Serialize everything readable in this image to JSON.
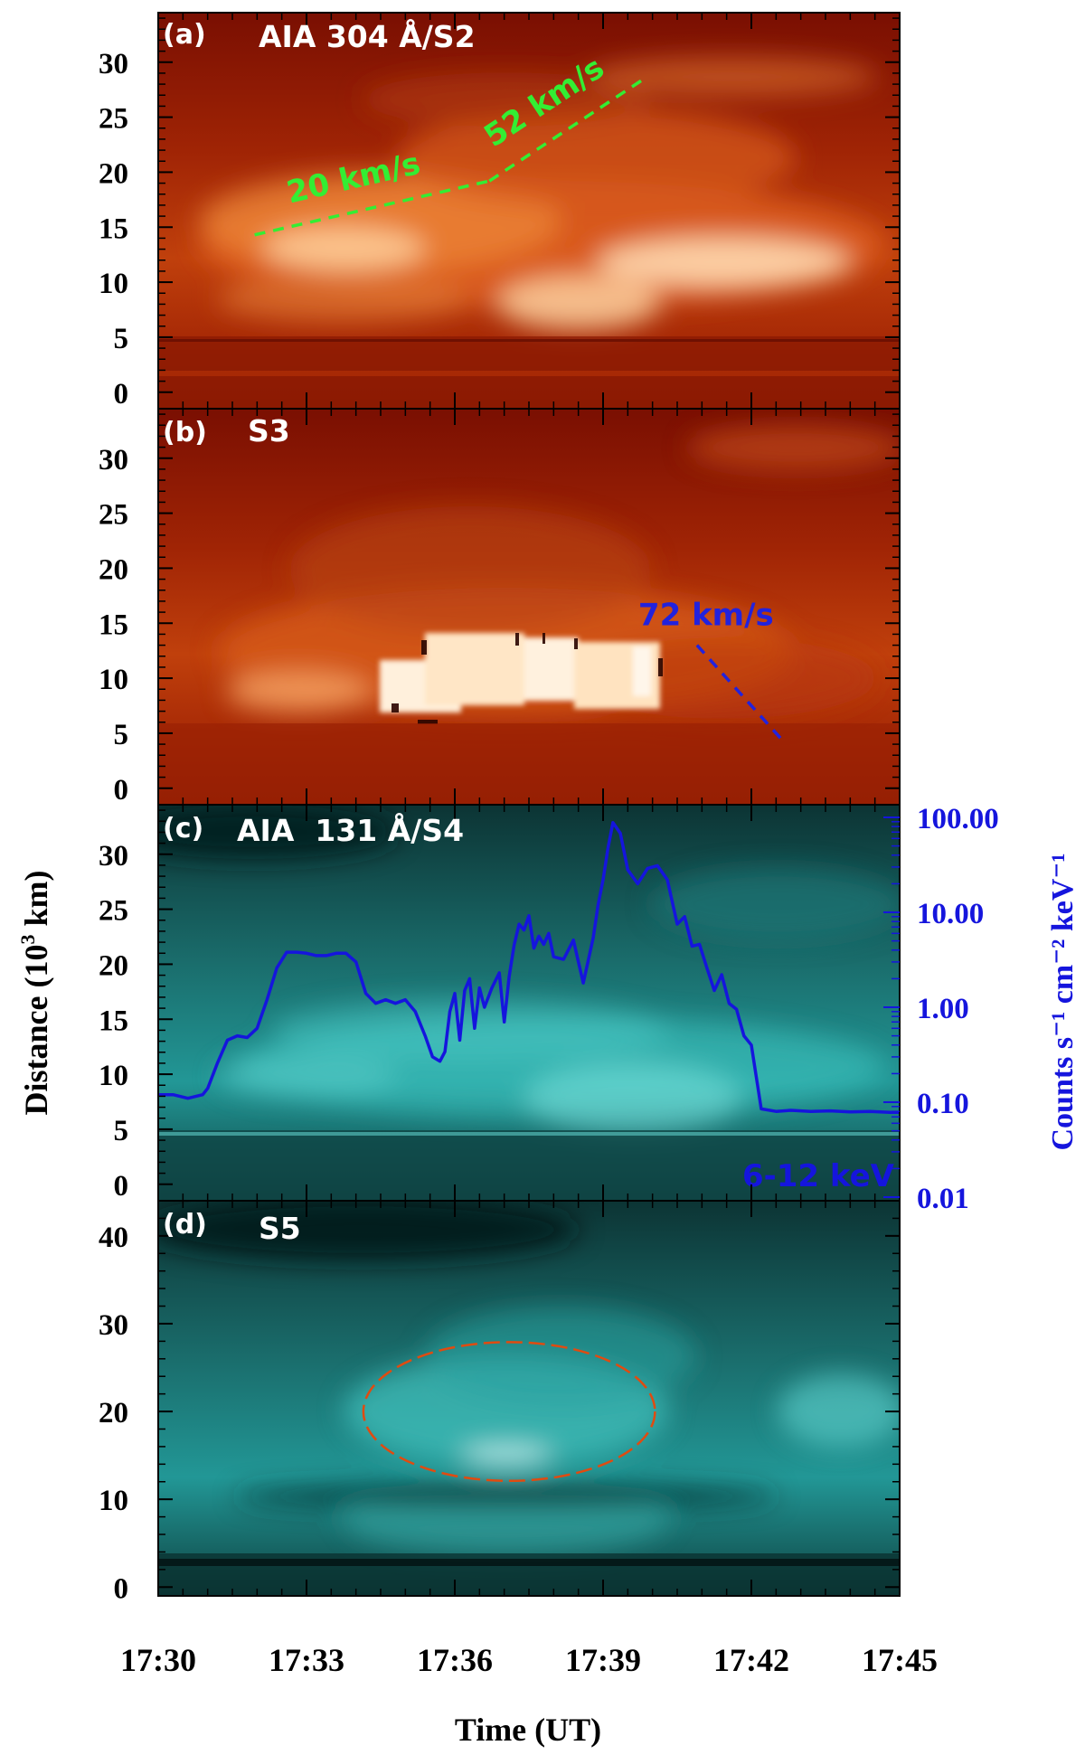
{
  "chart_data": {
    "type": "heatmap",
    "x_axis": {
      "label": "Time (UT)",
      "range_min": [
        0,
        15
      ],
      "ticks": [
        "17:30",
        "17:33",
        "17:36",
        "17:39",
        "17:42",
        "17:45"
      ],
      "tick_values_min": [
        0,
        3,
        6,
        9,
        12,
        15
      ]
    },
    "y_label": "Distance (10³ km)",
    "y_label_base": "Distance (10",
    "y_label_sup": "3",
    "y_label_unit": " km)",
    "panels": [
      {
        "id": "a",
        "label": "(a)",
        "title": "AIA 304 Å/S2",
        "colormap": "sdoaia304",
        "ylim": [
          -1.5,
          34.5
        ],
        "yticks": [
          0,
          5,
          10,
          15,
          20,
          25,
          30
        ],
        "annotations": [
          {
            "text": "20 km/s",
            "color": "#33ee33",
            "line": {
              "x": [
                1.95,
                6.7
              ],
              "y": [
                14.3,
                19.2
              ]
            }
          },
          {
            "text": "52 km/s",
            "color": "#33ee33",
            "line": {
              "x": [
                6.7,
                9.8
              ],
              "y": [
                19.2,
                28.4
              ]
            }
          }
        ]
      },
      {
        "id": "b",
        "label": "(b)",
        "title": "S3",
        "colormap": "sdoaia304",
        "ylim": [
          -1.5,
          34.5
        ],
        "yticks": [
          0,
          5,
          10,
          15,
          20,
          25,
          30
        ],
        "annotations": [
          {
            "text": "72 km/s",
            "color": "#2222dd",
            "line": {
              "x": [
                10.9,
                12.6
              ],
              "y": [
                13.0,
                4.5
              ]
            }
          }
        ]
      },
      {
        "id": "c",
        "label": "(c)",
        "title": "AIA  131 Å/S4",
        "colormap": "sdoaia131",
        "ylim": [
          -1.5,
          34.5
        ],
        "yticks": [
          0,
          5,
          10,
          15,
          20,
          25,
          30
        ],
        "overlay": {
          "type": "line",
          "name": "6-12 keV",
          "color": "#1515dd",
          "right_axis_label": "Counts s⁻¹ cm⁻² keV⁻¹",
          "right_axis_scale": "log",
          "right_ylim": [
            0.01,
            100
          ],
          "right_yticks": [
            "100.00",
            "10.00",
            "1.00",
            "0.10",
            "0.01"
          ],
          "right_ytick_values": [
            100,
            10,
            1,
            0.1,
            0.01
          ],
          "x": [
            0,
            0.3,
            0.6,
            0.9,
            1.0,
            1.2,
            1.4,
            1.6,
            1.8,
            2.0,
            2.2,
            2.4,
            2.6,
            2.8,
            3.0,
            3.2,
            3.4,
            3.6,
            3.8,
            4.0,
            4.2,
            4.4,
            4.6,
            4.8,
            5.0,
            5.2,
            5.4,
            5.55,
            5.7,
            5.8,
            5.9,
            6.0,
            6.1,
            6.2,
            6.3,
            6.4,
            6.5,
            6.6,
            6.75,
            6.9,
            7.0,
            7.1,
            7.2,
            7.3,
            7.4,
            7.5,
            7.6,
            7.7,
            7.8,
            7.9,
            8.0,
            8.2,
            8.4,
            8.5,
            8.6,
            8.8,
            8.9,
            9.0,
            9.1,
            9.2,
            9.35,
            9.5,
            9.7,
            9.9,
            10.1,
            10.3,
            10.5,
            10.65,
            10.8,
            10.95,
            11.1,
            11.25,
            11.4,
            11.55,
            11.7,
            11.85,
            12.0,
            12.2,
            12.5,
            12.8,
            13.2,
            13.6,
            14.0,
            14.4,
            14.8,
            15.0
          ],
          "y": [
            0.12,
            0.12,
            0.11,
            0.12,
            0.14,
            0.26,
            0.45,
            0.5,
            0.48,
            0.6,
            1.2,
            2.6,
            3.8,
            3.8,
            3.7,
            3.5,
            3.5,
            3.7,
            3.7,
            3.0,
            1.4,
            1.1,
            1.2,
            1.1,
            1.2,
            0.9,
            0.5,
            0.3,
            0.27,
            0.34,
            0.9,
            1.4,
            0.45,
            1.5,
            2.0,
            0.6,
            1.6,
            1.0,
            1.6,
            2.3,
            0.7,
            2.1,
            4.5,
            7.5,
            6.5,
            9.2,
            4.2,
            5.6,
            4.6,
            6.0,
            3.4,
            3.2,
            5.1,
            3.0,
            1.8,
            5.4,
            12.0,
            22.0,
            48.0,
            88.0,
            68.0,
            28.0,
            20.0,
            29.0,
            31.0,
            22.0,
            7.5,
            9.0,
            4.4,
            4.6,
            2.6,
            1.5,
            2.2,
            1.1,
            0.95,
            0.5,
            0.4,
            0.085,
            0.08,
            0.082,
            0.08,
            0.081,
            0.079,
            0.08,
            0.078,
            0.078
          ]
        }
      },
      {
        "id": "d",
        "label": "(d)",
        "title": "S5",
        "colormap": "sdoaia131",
        "ylim": [
          -1,
          44
        ],
        "yticks": [
          0,
          10,
          20,
          30,
          40
        ],
        "annotations": [
          {
            "type": "ellipse",
            "color": "#e04b10",
            "center": {
              "x": 7.1,
              "y": 20.0
            },
            "rx_min": 2.95,
            "ry_km": 7.9
          }
        ]
      }
    ]
  }
}
